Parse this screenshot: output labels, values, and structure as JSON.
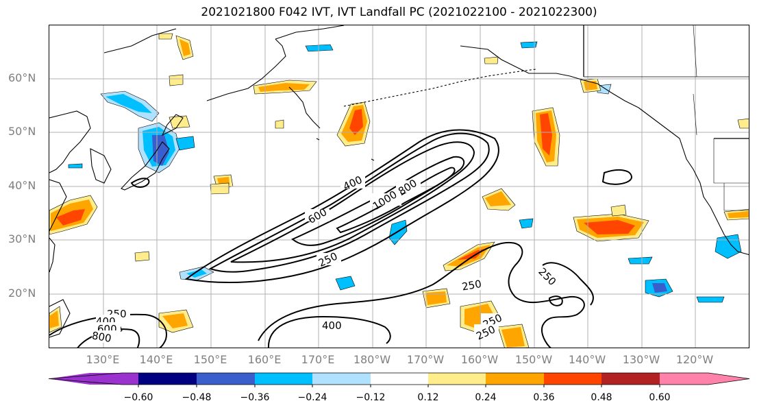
{
  "title": "2021021800 F042 IVT, IVT Landfall PC (2021022100 - 2021022300)",
  "latitude_labels": [
    "60°N",
    "50°N",
    "40°N",
    "30°N",
    "20°N"
  ],
  "longitude_labels": [
    "130°E",
    "140°E",
    "150°E",
    "160°E",
    "170°E",
    "180°W",
    "170°W",
    "160°W",
    "150°W",
    "140°W",
    "130°W",
    "120°W"
  ],
  "contour_labels": [
    "400",
    "600",
    "1000",
    "800",
    "250",
    "250",
    "250",
    "400",
    "250",
    "250",
    "250",
    "400",
    "600",
    "800"
  ],
  "colorbar": {
    "tick_labels": [
      "−0.60",
      "−0.48",
      "−0.36",
      "−0.24",
      "−0.12",
      "0.12",
      "0.24",
      "0.36",
      "0.48",
      "0.60"
    ],
    "colors": [
      "#9a32cd",
      "#000080",
      "#3a5fcd",
      "#00bfff",
      "#b0e2ff",
      "#ffffff",
      "#ffec8b",
      "#ffa500",
      "#ff4500",
      "#b22222",
      "#ff82ab"
    ]
  },
  "shading_colors": {
    "neg_light": "#b0e2ff",
    "neg_mid": "#00bfff",
    "neg_strong": "#3a5fcd",
    "neg_max": "#000080",
    "pos_light": "#ffec8b",
    "pos_mid": "#ffa500",
    "pos_strong": "#ff4500",
    "pos_max": "#b22222"
  }
}
